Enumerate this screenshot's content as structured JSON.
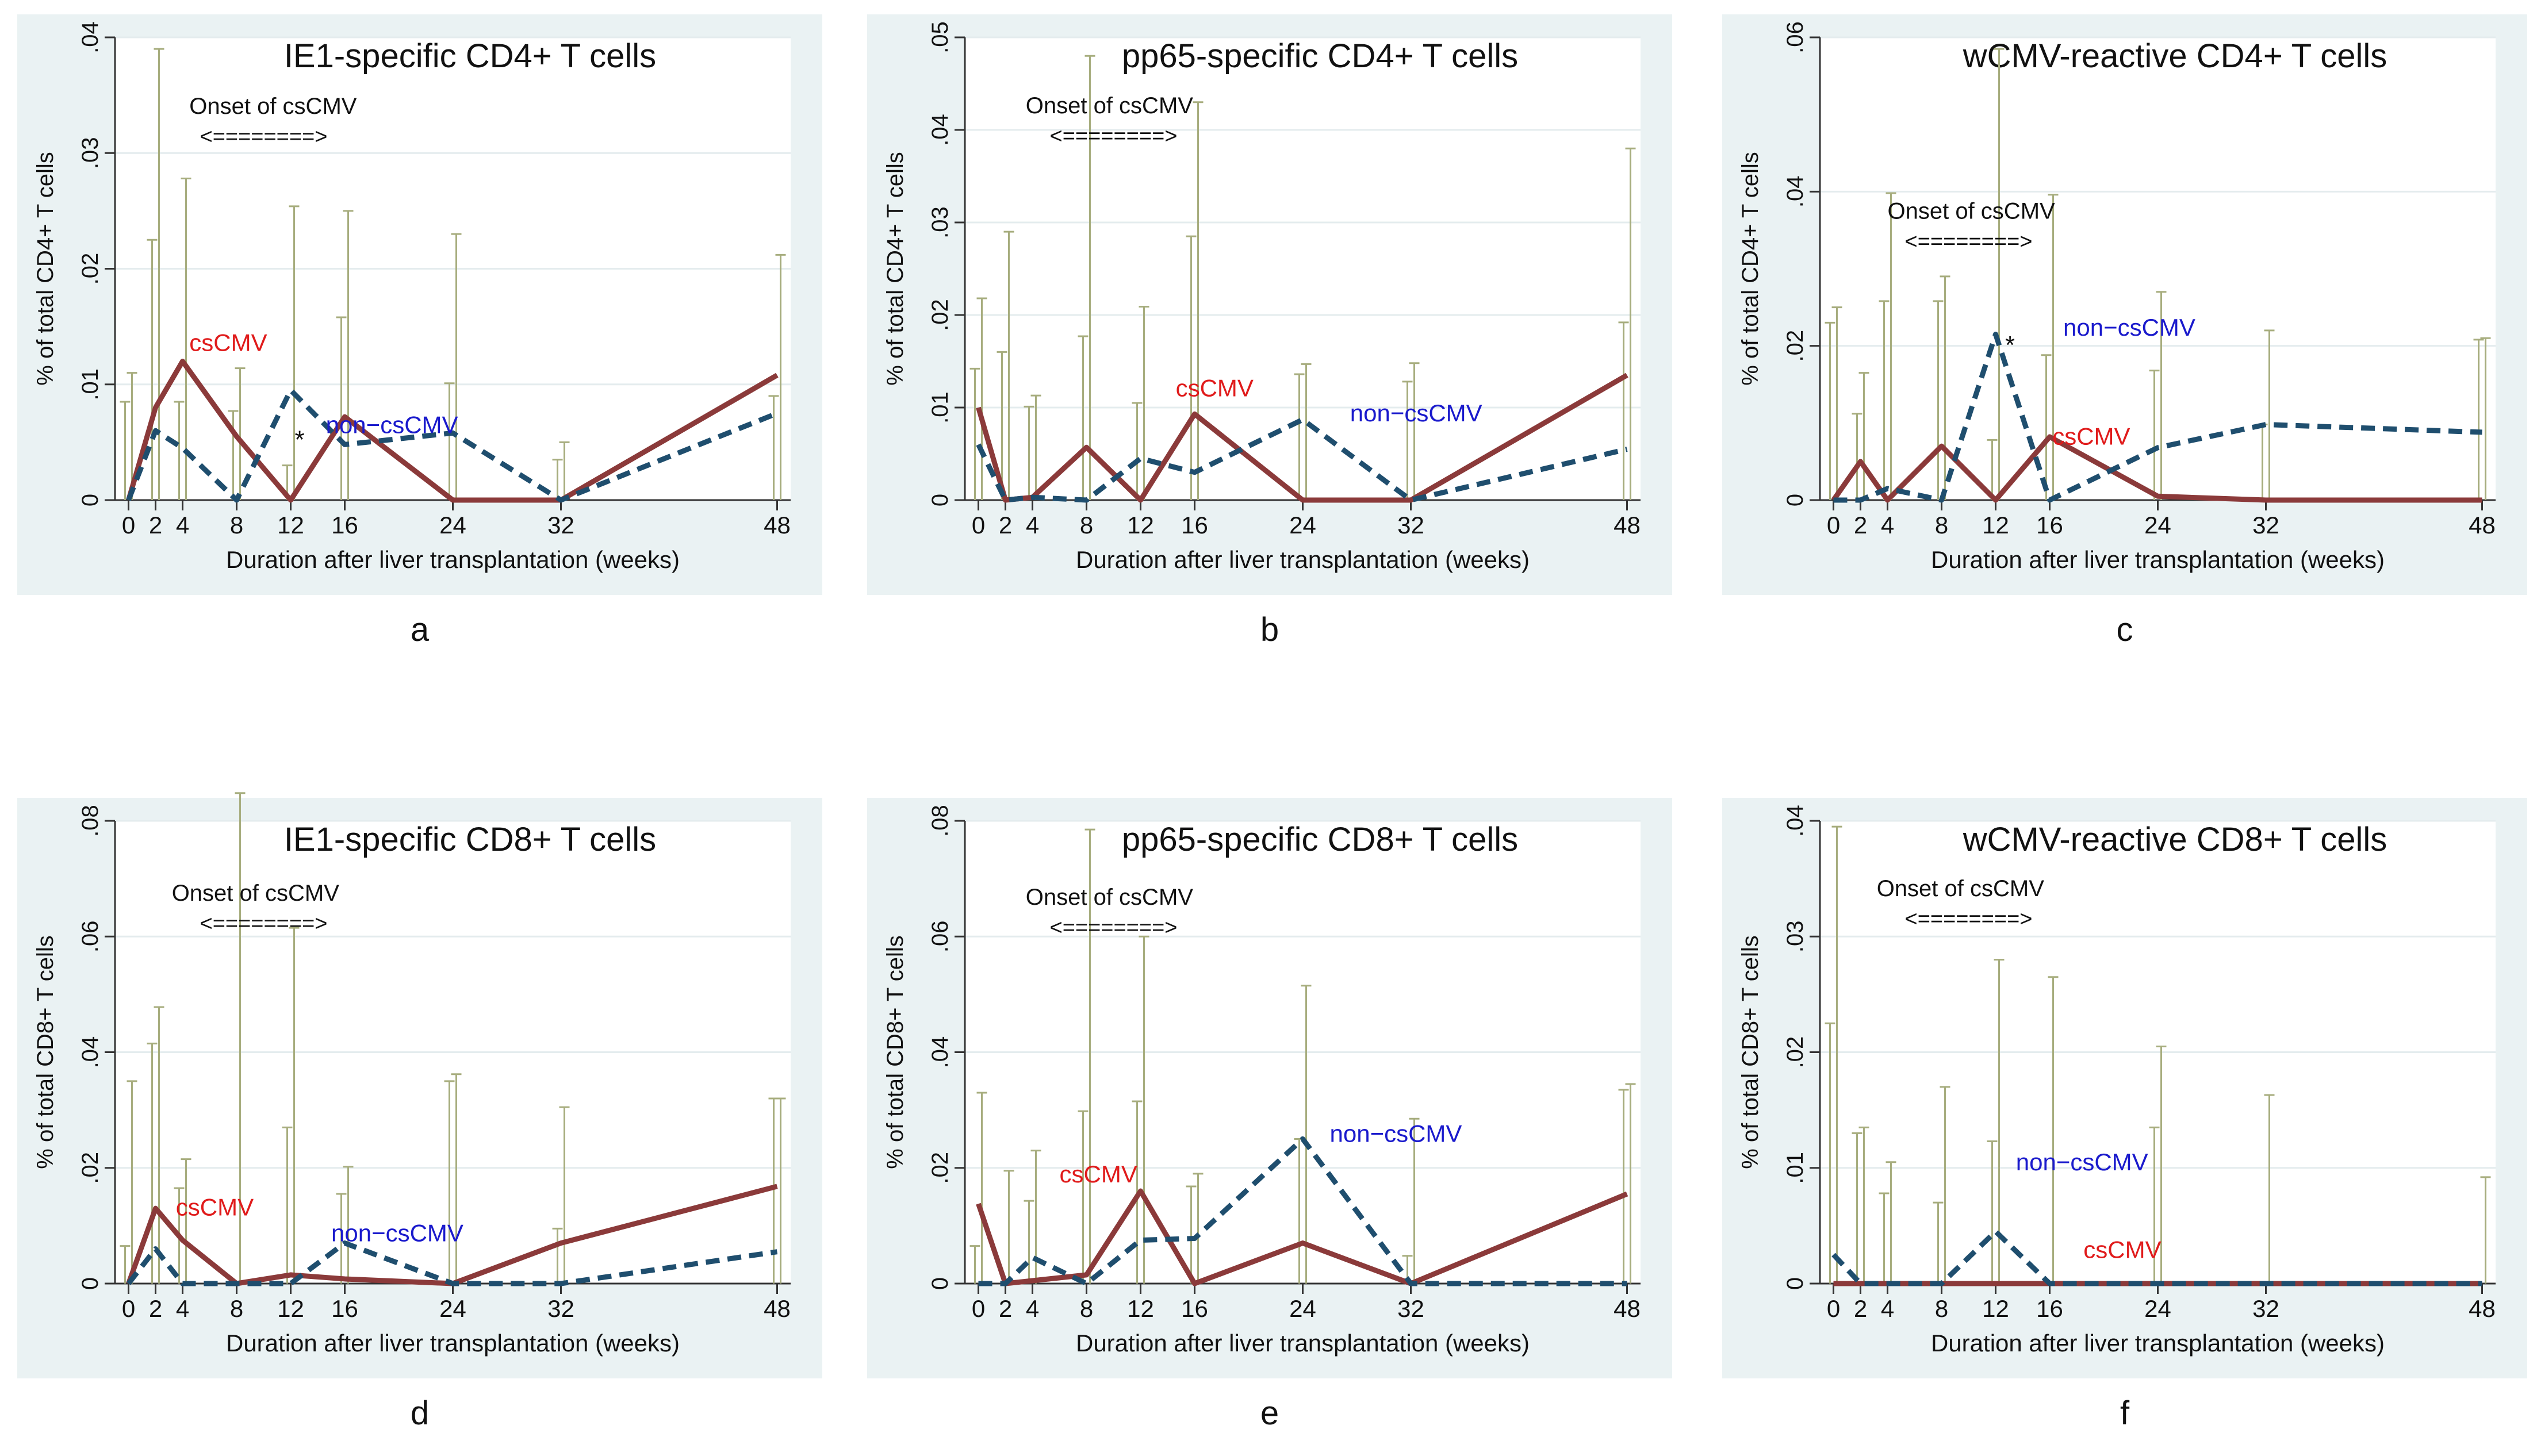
{
  "colors": {
    "panel_bg": "#eaf2f3",
    "plot_bg": "#ffffff",
    "cs_line": "#8b3a3a",
    "non_line": "#1f4e6e",
    "whisker": "#a7ad7e",
    "cs_label": "#e01b1b",
    "non_label": "#1a1acc",
    "text": "#111111"
  },
  "chart_data": [
    {
      "type": "line",
      "panel_letter": "a",
      "title": "IE1-specific CD4+ T cells",
      "xlabel": "Duration after liver transplantation (weeks)",
      "ylabel": "% of total CD4+ T cells",
      "x": [
        0,
        2,
        4,
        8,
        12,
        16,
        24,
        32,
        48
      ],
      "x_tick_labels": [
        "0",
        "2",
        "4",
        "8",
        "12",
        "16",
        "24",
        "32",
        "48"
      ],
      "xlim": [
        -1,
        49
      ],
      "ylim": [
        0,
        0.04
      ],
      "y_ticks": [
        0,
        0.01,
        0.02,
        0.03,
        0.04
      ],
      "y_tick_labels": [
        "0",
        ".01",
        ".02",
        ".03",
        ".04"
      ],
      "grid": "horizontal",
      "series": [
        {
          "name": "csCMV",
          "style": "solid",
          "values": [
            0,
            0.008,
            0.012,
            0.0055,
            0,
            0.0072,
            0,
            0,
            0.0108
          ],
          "whisker_high": [
            0.011,
            0.039,
            0.0278,
            0.0114,
            0.0254,
            0.025,
            0.023,
            0.005,
            0.0212
          ]
        },
        {
          "name": "non−csCMV",
          "style": "dashed",
          "values": [
            0,
            0.006,
            0.0045,
            0,
            0.0095,
            0.0048,
            0.0058,
            0,
            0.0075
          ],
          "whisker_high": [
            0.0085,
            0.0225,
            0.0085,
            0.0077,
            0.003,
            0.0158,
            0.0101,
            0.0035,
            0.009
          ]
        }
      ],
      "annotations": {
        "onset_label": "Onset of csCMV",
        "onset_arrow": "<========>",
        "onset_from": 4,
        "onset_to": 16,
        "asterisk": "*",
        "asterisk_x": 12.3
      }
    },
    {
      "type": "line",
      "panel_letter": "b",
      "title": "pp65-specific CD4+ T cells",
      "xlabel": "Duration after liver transplantation (weeks)",
      "ylabel": "% of total CD4+ T cells",
      "x": [
        0,
        2,
        4,
        8,
        12,
        16,
        24,
        32,
        48
      ],
      "x_tick_labels": [
        "0",
        "2",
        "4",
        "8",
        "12",
        "16",
        "24",
        "32",
        "48"
      ],
      "xlim": [
        -1,
        49
      ],
      "ylim": [
        0,
        0.05
      ],
      "y_ticks": [
        0,
        0.01,
        0.02,
        0.03,
        0.04,
        0.05
      ],
      "y_tick_labels": [
        "0",
        ".01",
        ".02",
        ".03",
        ".04",
        ".05"
      ],
      "grid": "horizontal",
      "series": [
        {
          "name": "csCMV",
          "style": "solid",
          "values": [
            0.01,
            0,
            0.0003,
            0.0057,
            0,
            0.0093,
            0,
            0,
            0.0135
          ],
          "whisker_high": [
            0.0218,
            0.029,
            0.0113,
            0.048,
            0.0209,
            0.043,
            0.0147,
            0.0148,
            0.038
          ]
        },
        {
          "name": "non−csCMV",
          "style": "dashed",
          "values": [
            0.006,
            0,
            0.0003,
            0,
            0.0045,
            0.003,
            0.0087,
            0,
            0.0055
          ],
          "whisker_high": [
            0.0142,
            0.016,
            0.0101,
            0.0177,
            0.0105,
            0.0285,
            0.0136,
            0.0128,
            0.0192
          ]
        }
      ],
      "annotations": {
        "onset_label": "Onset of csCMV",
        "onset_arrow": "<========>",
        "onset_from": 4,
        "onset_to": 16
      }
    },
    {
      "type": "line",
      "panel_letter": "c",
      "title": "wCMV-reactive CD4+ T cells",
      "xlabel": "Duration after liver transplantation (weeks)",
      "ylabel": "% of total CD4+ T cells",
      "x": [
        0,
        2,
        4,
        8,
        12,
        16,
        24,
        32,
        48
      ],
      "x_tick_labels": [
        "0",
        "2",
        "4",
        "8",
        "12",
        "16",
        "24",
        "32",
        "48"
      ],
      "xlim": [
        -1,
        49
      ],
      "ylim": [
        0,
        0.06
      ],
      "y_ticks": [
        0,
        0.02,
        0.04,
        0.06
      ],
      "y_tick_labels": [
        "0",
        ".02",
        ".04",
        ".06"
      ],
      "grid": "horizontal",
      "series": [
        {
          "name": "csCMV",
          "style": "solid",
          "values": [
            0,
            0.005,
            0,
            0.007,
            0,
            0.0082,
            0.0005,
            0,
            0
          ],
          "whisker_high": [
            0.025,
            0.0165,
            0.0398,
            0.029,
            0.0585,
            0.0396,
            0.027,
            0.022,
            0.021
          ]
        },
        {
          "name": "non−csCMV",
          "style": "dashed",
          "values": [
            0,
            0,
            0.0015,
            0,
            0.0215,
            0,
            0.0068,
            0.0098,
            0.0088
          ],
          "whisker_high": [
            0.023,
            0.0112,
            0.0258,
            0.0258,
            0.0078,
            0.0188,
            0.0168,
            0.0098,
            0.0208
          ]
        }
      ],
      "annotations": {
        "onset_label": "Onset of csCMV",
        "onset_arrow": "<========>",
        "onset_from": 4,
        "onset_to": 16,
        "asterisk": "*",
        "asterisk_x": 12.7
      }
    },
    {
      "type": "line",
      "panel_letter": "d",
      "title": "IE1-specific CD8+ T cells",
      "xlabel": "Duration after liver transplantation (weeks)",
      "ylabel": "% of total CD8+ T cells",
      "x": [
        0,
        2,
        4,
        8,
        12,
        16,
        24,
        32,
        48
      ],
      "x_tick_labels": [
        "0",
        "2",
        "4",
        "8",
        "12",
        "16",
        "24",
        "32",
        "48"
      ],
      "xlim": [
        -1,
        49
      ],
      "ylim": [
        0,
        0.08
      ],
      "y_ticks": [
        0,
        0.02,
        0.04,
        0.06,
        0.08
      ],
      "y_tick_labels": [
        "0",
        ".02",
        ".04",
        ".06",
        ".08"
      ],
      "grid": "horizontal",
      "series": [
        {
          "name": "csCMV",
          "style": "solid",
          "values": [
            0,
            0.013,
            0.0075,
            0,
            0.0015,
            0.0008,
            0,
            0.007,
            0.0168
          ],
          "whisker_high": [
            0.035,
            0.0478,
            0.0215,
            0.0848,
            0.0615,
            0.0202,
            0.0362,
            0.0305,
            0.032
          ]
        },
        {
          "name": "non−csCMV",
          "style": "dashed",
          "values": [
            0,
            0.006,
            0,
            0,
            0,
            0.007,
            0,
            0,
            0.0055
          ],
          "whisker_high": [
            0.0065,
            0.0415,
            0.0165,
            0.0,
            0.027,
            0.0155,
            0.035,
            0.0095,
            0.032
          ]
        }
      ],
      "annotations": {
        "onset_label": "Onset of csCMV",
        "onset_arrow": "<========>",
        "onset_from": 4,
        "onset_to": 16
      }
    },
    {
      "type": "line",
      "panel_letter": "e",
      "title": "pp65-specific CD8+ T cells",
      "xlabel": "Duration after liver transplantation (weeks)",
      "ylabel": "% of total CD8+ T cells",
      "x": [
        0,
        2,
        4,
        8,
        12,
        16,
        24,
        32,
        48
      ],
      "x_tick_labels": [
        "0",
        "2",
        "4",
        "8",
        "12",
        "16",
        "24",
        "32",
        "48"
      ],
      "xlim": [
        -1,
        49
      ],
      "ylim": [
        0,
        0.08
      ],
      "y_ticks": [
        0,
        0.02,
        0.04,
        0.06,
        0.08
      ],
      "y_tick_labels": [
        "0",
        ".02",
        ".04",
        ".06",
        ".08"
      ],
      "grid": "horizontal",
      "series": [
        {
          "name": "csCMV",
          "style": "solid",
          "values": [
            0.0138,
            0,
            0.0005,
            0.0015,
            0.016,
            0,
            0.007,
            0,
            0.0155
          ],
          "whisker_high": [
            0.033,
            0.0195,
            0.023,
            0.0785,
            0.06,
            0.019,
            0.0515,
            0.0285,
            0.0345
          ]
        },
        {
          "name": "non−csCMV",
          "style": "dashed",
          "values": [
            0,
            0,
            0.0045,
            0,
            0.0075,
            0.0078,
            0.025,
            0,
            0
          ],
          "whisker_high": [
            0.0065,
            0.0,
            0.0143,
            0.0298,
            0.0315,
            0.0168,
            0.025,
            0.0048,
            0.0335
          ]
        }
      ],
      "annotations": {
        "onset_label": "Onset of csCMV",
        "onset_arrow": "<========>",
        "onset_from": 4,
        "onset_to": 16
      }
    },
    {
      "type": "line",
      "panel_letter": "f",
      "title": "wCMV-reactive CD8+ T cells",
      "xlabel": "Duration after liver transplantation (weeks)",
      "ylabel": "% of total CD8+ T cells",
      "x": [
        0,
        2,
        4,
        8,
        12,
        16,
        24,
        32,
        48
      ],
      "x_tick_labels": [
        "0",
        "2",
        "4",
        "8",
        "12",
        "16",
        "24",
        "32",
        "48"
      ],
      "xlim": [
        -1,
        49
      ],
      "ylim": [
        0,
        0.04
      ],
      "y_ticks": [
        0,
        0.01,
        0.02,
        0.03,
        0.04
      ],
      "y_tick_labels": [
        "0",
        ".01",
        ".02",
        ".03",
        ".04"
      ],
      "grid": "horizontal",
      "series": [
        {
          "name": "csCMV",
          "style": "solid",
          "values": [
            0,
            0,
            0,
            0,
            0,
            0,
            0,
            0,
            0
          ],
          "whisker_high": [
            0.0395,
            0.0135,
            0.0105,
            0.017,
            0.028,
            0.0265,
            0.0205,
            0.0163,
            0.0092
          ]
        },
        {
          "name": "non−csCMV",
          "style": "dashed",
          "values": [
            0.0025,
            0,
            0,
            0,
            0.0045,
            0,
            0,
            0,
            0
          ],
          "whisker_high": [
            0.0225,
            0.013,
            0.0078,
            0.007,
            0.0123,
            0.0,
            0.0135,
            0.0,
            0.0
          ]
        }
      ],
      "annotations": {
        "onset_label": "Onset of csCMV",
        "onset_arrow": "<========>",
        "onset_from": 4,
        "onset_to": 16
      }
    }
  ]
}
